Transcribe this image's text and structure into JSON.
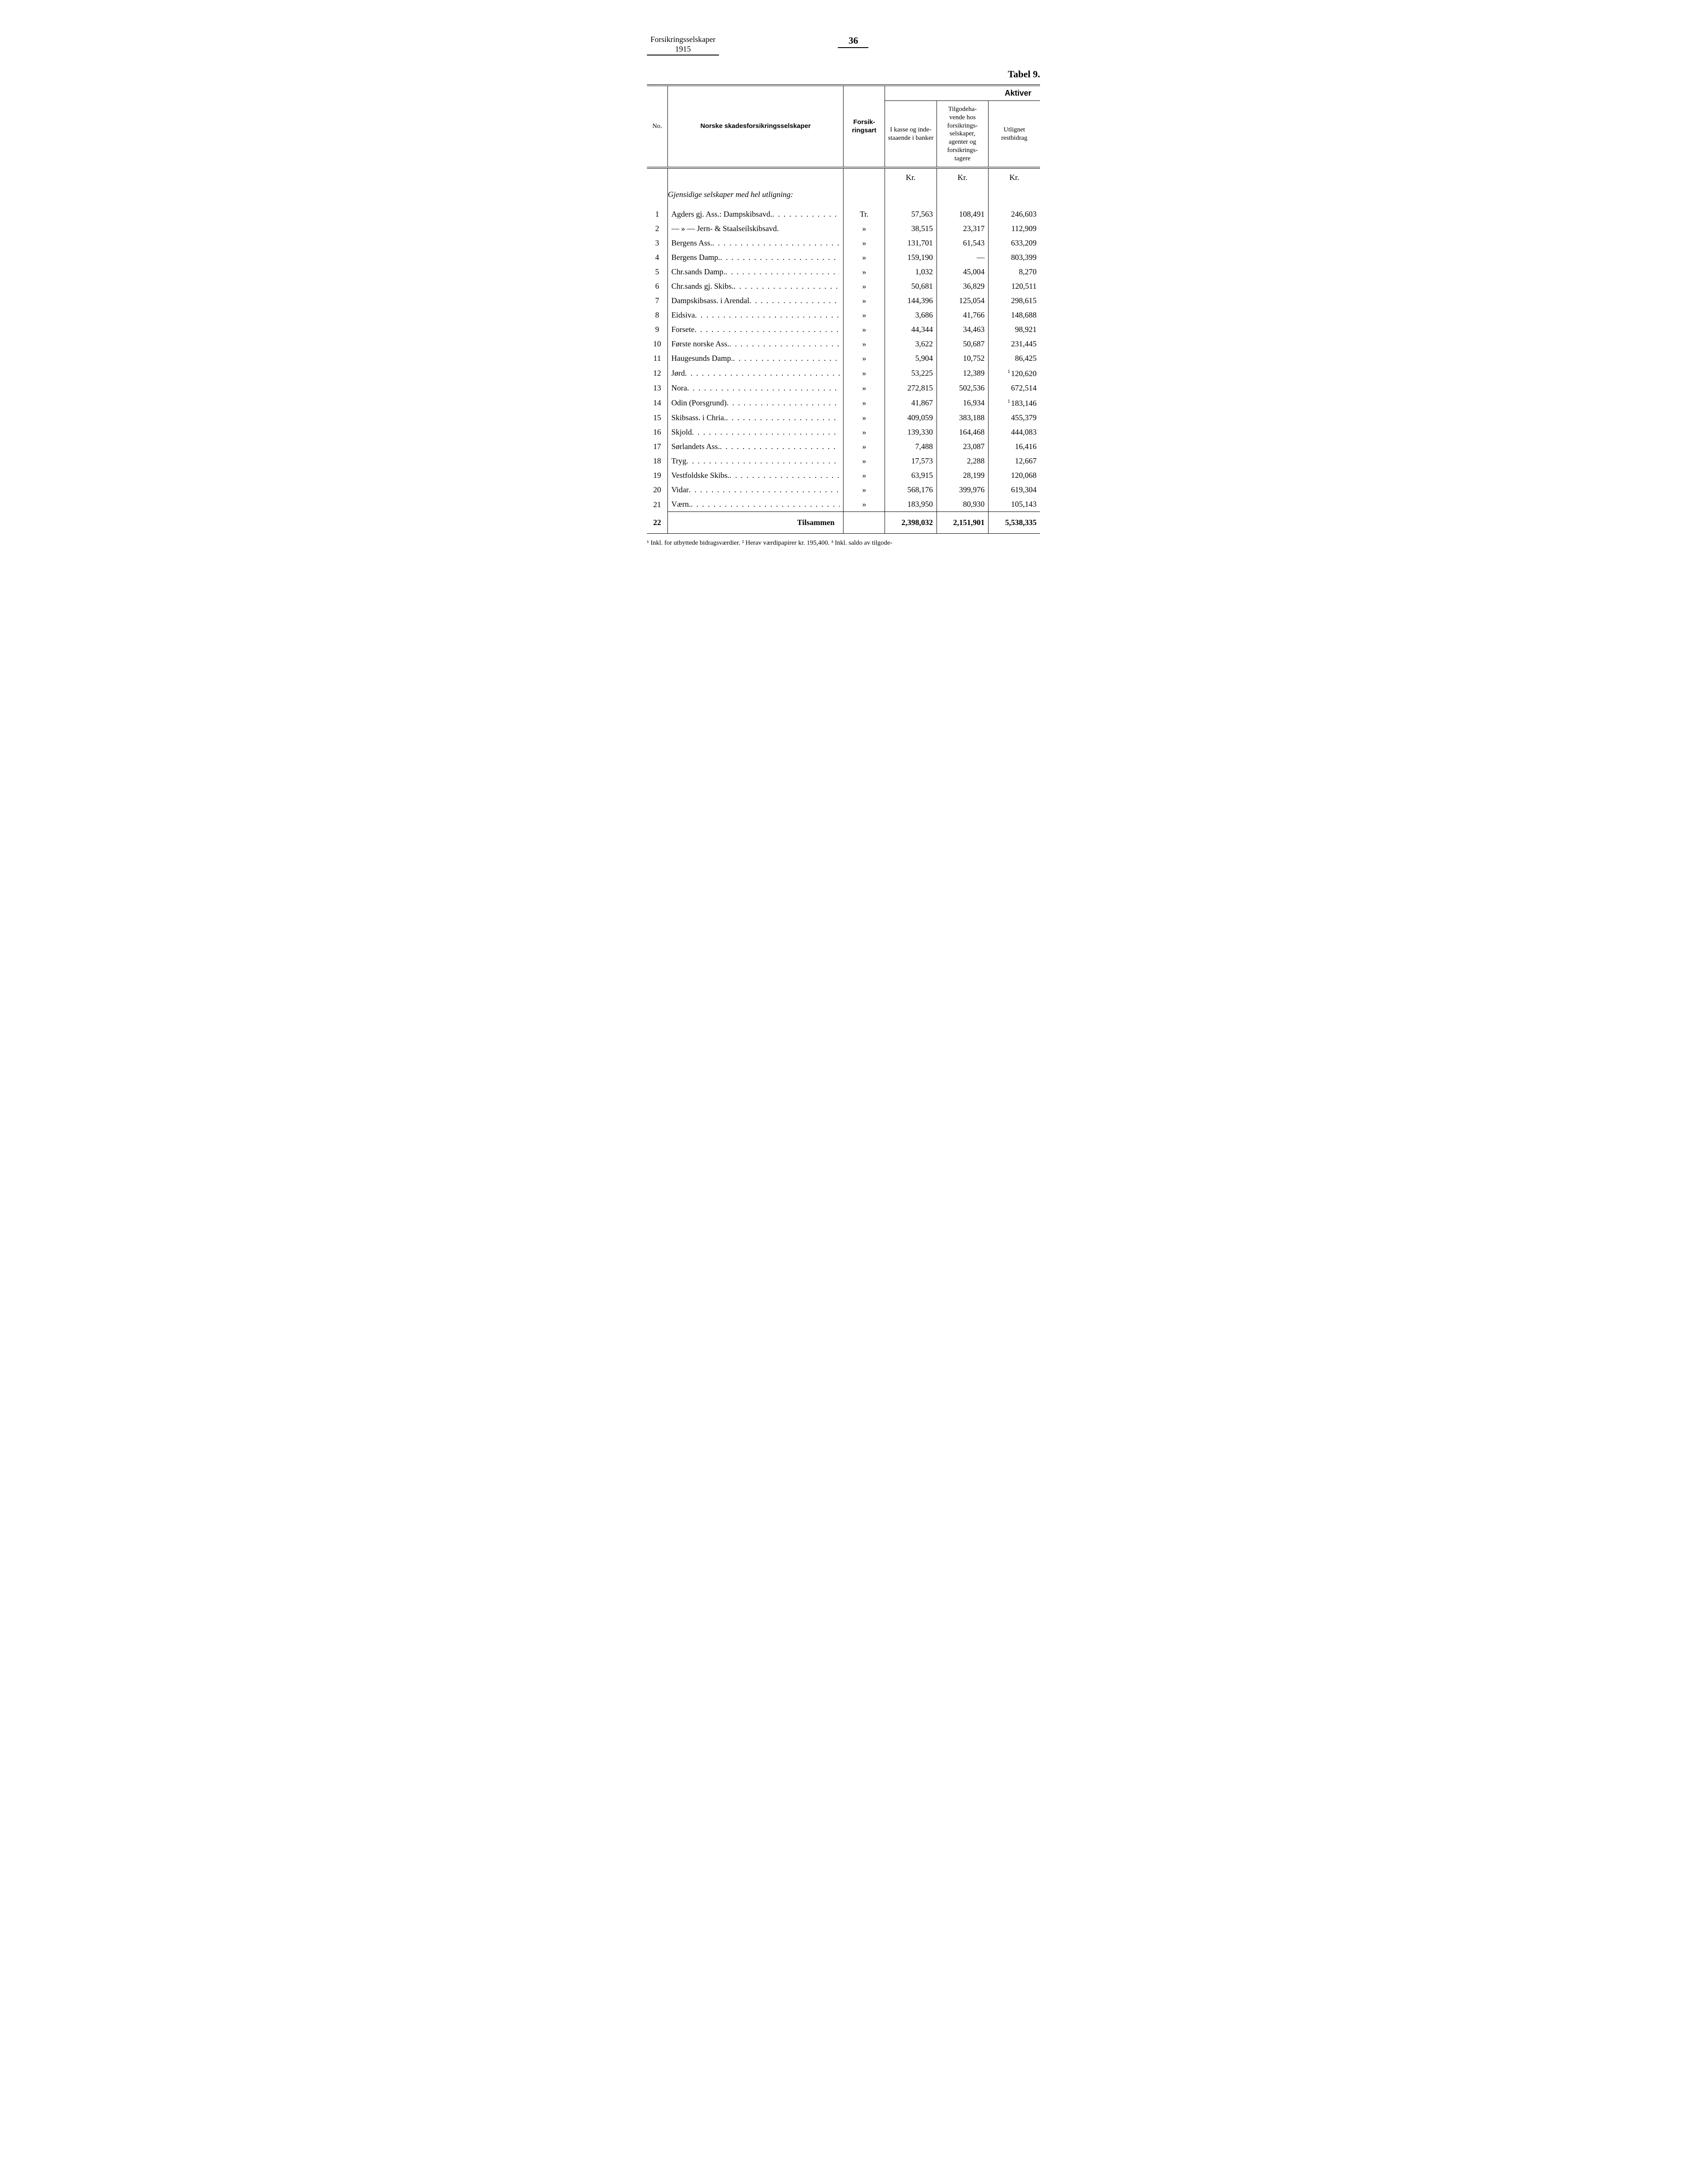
{
  "header": {
    "left_line1": "Forsikringsselskaper",
    "left_line2": "1915",
    "page_number": "36",
    "tabel": "Tabel 9."
  },
  "columns": {
    "no": "No.",
    "name": "Norske skadesforsikringsselskaper",
    "art": "Forsik-\nringsart",
    "aktiver": "Aktiver",
    "c1": "I kasse og inde-\nstaaende i banker",
    "c2": "Tilgodeha-\nvende hos forsikrings-\nselskaper, agenter og forsikrings-\ntagere",
    "c3": "Utlignet restbidrag"
  },
  "unit": "Kr.",
  "section_title": "Gjensidige selskaper med hel utligning:",
  "rows": [
    {
      "no": "1",
      "name": "Agders gj. Ass.: Dampskibsavd.",
      "art": "Tr.",
      "c1": "57,563",
      "c2": "108,491",
      "c3": "246,603"
    },
    {
      "no": "2",
      "name": "— » —      Jern- & Staalseilskibsavd.",
      "art": "»",
      "c1": "38,515",
      "c2": "23,317",
      "c3": "112,909",
      "nodots": true
    },
    {
      "no": "3",
      "name": "Bergens Ass.",
      "art": "»",
      "c1": "131,701",
      "c2": "61,543",
      "c3": "633,209"
    },
    {
      "no": "4",
      "name": "Bergens Damp.",
      "art": "»",
      "c1": "159,190",
      "c2": "—",
      "c3": "803,399"
    },
    {
      "no": "5",
      "name": "Chr.sands Damp.",
      "art": "»",
      "c1": "1,032",
      "c2": "45,004",
      "c3": "8,270"
    },
    {
      "no": "6",
      "name": "Chr.sands gj. Skibs.",
      "art": "»",
      "c1": "50,681",
      "c2": "36,829",
      "c3": "120,511"
    },
    {
      "no": "7",
      "name": "Dampskibsass. i Arendal",
      "art": "»",
      "c1": "144,396",
      "c2": "125,054",
      "c3": "298,615"
    },
    {
      "no": "8",
      "name": "Eidsiva",
      "art": "»",
      "c1": "3,686",
      "c2": "41,766",
      "c3": "148,688"
    },
    {
      "no": "9",
      "name": "Forsete",
      "art": "»",
      "c1": "44,344",
      "c2": "34,463",
      "c3": "98,921"
    },
    {
      "no": "10",
      "name": "Første norske Ass.",
      "art": "»",
      "c1": "3,622",
      "c2": "50,687",
      "c3": "231,445"
    },
    {
      "no": "11",
      "name": "Haugesunds Damp.",
      "art": "»",
      "c1": "5,904",
      "c2": "10,752",
      "c3": "86,425"
    },
    {
      "no": "12",
      "name": "Jørd",
      "art": "»",
      "c1": "53,225",
      "c2": "12,389",
      "c3": "120,620",
      "c3_note": "1"
    },
    {
      "no": "13",
      "name": "Nora",
      "art": "»",
      "c1": "272,815",
      "c2": "502,536",
      "c3": "672,514"
    },
    {
      "no": "14",
      "name": "Odin (Porsgrund)",
      "art": "»",
      "c1": "41,867",
      "c2": "16,934",
      "c3": "183,146",
      "c3_note": "1"
    },
    {
      "no": "15",
      "name": "Skibsass. i Chria.",
      "art": "»",
      "c1": "409,059",
      "c2": "383,188",
      "c3": "455,379"
    },
    {
      "no": "16",
      "name": "Skjold",
      "art": "»",
      "c1": "139,330",
      "c2": "164,468",
      "c3": "444,083"
    },
    {
      "no": "17",
      "name": "Sørlandets Ass.",
      "art": "»",
      "c1": "7,488",
      "c2": "23,087",
      "c3": "16,416"
    },
    {
      "no": "18",
      "name": "Tryg",
      "art": "»",
      "c1": "17,573",
      "c2": "2,288",
      "c3": "12,667"
    },
    {
      "no": "19",
      "name": "Vestfoldske Skibs.",
      "art": "»",
      "c1": "63,915",
      "c2": "28,199",
      "c3": "120,068"
    },
    {
      "no": "20",
      "name": "Vidar",
      "art": "»",
      "c1": "568,176",
      "c2": "399,976",
      "c3": "619,304"
    },
    {
      "no": "21",
      "name": "Værn.",
      "art": "»",
      "c1": "183,950",
      "c2": "80,930",
      "c3": "105,143"
    }
  ],
  "sum": {
    "no": "22",
    "label": "Tilsammen",
    "c1": "2,398,032",
    "c2": "2,151,901",
    "c3": "5,538,335"
  },
  "footnotes": "¹ Inkl. for utbyttede bidragsværdier.  ² Herav værdipapirer kr. 195,400.  ³ Inkl. saldo av tilgode-"
}
